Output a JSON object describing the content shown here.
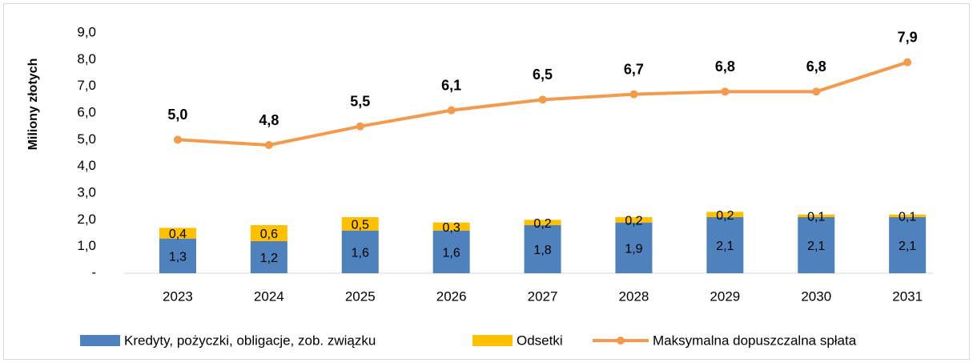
{
  "chart_data": {
    "type": "bar_line",
    "y_axis_label": "Miliony złotych",
    "categories": [
      "2023",
      "2024",
      "2025",
      "2026",
      "2027",
      "2028",
      "2029",
      "2030",
      "2031"
    ],
    "series": [
      {
        "name": "Kredyty, pożyczki, obligacje, zob. związku",
        "type": "bar",
        "color": "#4f81bd",
        "values": [
          1.3,
          1.2,
          1.6,
          1.6,
          1.8,
          1.9,
          2.1,
          2.1,
          2.1
        ],
        "value_labels": [
          "1,3",
          "1,2",
          "1,6",
          "1,6",
          "1,8",
          "1,9",
          "2,1",
          "2,1",
          "2,1"
        ]
      },
      {
        "name": "Odsetki",
        "type": "bar",
        "color": "#ffc000",
        "values": [
          0.4,
          0.6,
          0.5,
          0.3,
          0.2,
          0.2,
          0.2,
          0.1,
          0.1
        ],
        "value_labels": [
          "0,4",
          "0,6",
          "0,5",
          "0,3",
          "0,2",
          "0,2",
          "0,2",
          "0,1",
          "0,1"
        ]
      },
      {
        "name": "Maksymalna dopuszczalna spłata",
        "type": "line",
        "color": "#f39a4c",
        "values": [
          5.0,
          4.8,
          5.5,
          6.1,
          6.5,
          6.7,
          6.8,
          6.8,
          7.9
        ],
        "value_labels": [
          "5,0",
          "4,8",
          "5,5",
          "6,1",
          "6,5",
          "6,7",
          "6,8",
          "6,8",
          "7,9"
        ]
      }
    ],
    "ylim": [
      0,
      9
    ],
    "yticks": [
      {
        "value": 0,
        "label": "-"
      },
      {
        "value": 1,
        "label": "1,0"
      },
      {
        "value": 2,
        "label": "2,0"
      },
      {
        "value": 3,
        "label": "3,0"
      },
      {
        "value": 4,
        "label": "4,0"
      },
      {
        "value": 5,
        "label": "5,0"
      },
      {
        "value": 6,
        "label": "6,0"
      },
      {
        "value": 7,
        "label": "7,0"
      },
      {
        "value": 8,
        "label": "8,0"
      },
      {
        "value": 9,
        "label": "9,0"
      }
    ],
    "stacked": true
  }
}
